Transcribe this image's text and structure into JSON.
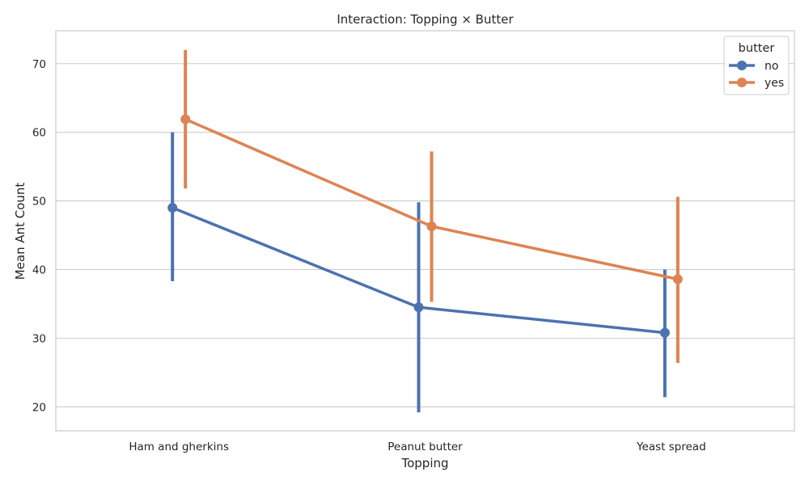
{
  "chart_data": {
    "type": "line",
    "title": "Interaction: Topping × Butter",
    "xlabel": "Topping",
    "ylabel": "Mean Ant Count",
    "categories": [
      "Ham and gherkins",
      "Peanut butter",
      "Yeast spread"
    ],
    "ylim": [
      16.5,
      74.8
    ],
    "yticks": [
      20,
      30,
      40,
      50,
      60,
      70
    ],
    "grid": true,
    "legend": {
      "title": "butter",
      "placement": "top-right"
    },
    "series": [
      {
        "name": "no",
        "color": "#4c72b0",
        "values": [
          49.0,
          34.5,
          30.8
        ],
        "ci_low": [
          38.3,
          19.2,
          21.4
        ],
        "ci_high": [
          60.0,
          49.8,
          40.0
        ]
      },
      {
        "name": "yes",
        "color": "#dd8452",
        "values": [
          61.9,
          46.3,
          38.6
        ],
        "ci_low": [
          51.8,
          35.3,
          26.4
        ],
        "ci_high": [
          72.0,
          57.2,
          50.6
        ]
      }
    ]
  }
}
